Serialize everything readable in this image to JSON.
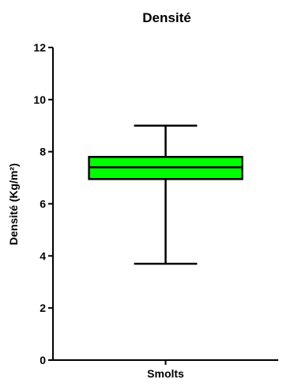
{
  "chart_data": {
    "type": "box",
    "title": "Densité",
    "xlabel": "",
    "ylabel": "Densité (Kg/m²)",
    "ylim": [
      0,
      12
    ],
    "yticks": [
      0,
      2,
      4,
      6,
      8,
      10,
      12
    ],
    "grid": false,
    "legend": "none",
    "categories": [
      "Smolts"
    ],
    "boxes": [
      {
        "category": "Smolts",
        "min": 3.7,
        "q1": 6.95,
        "median": 7.4,
        "q3": 7.8,
        "max": 9.0
      }
    ],
    "box_color": "#00ff00"
  }
}
